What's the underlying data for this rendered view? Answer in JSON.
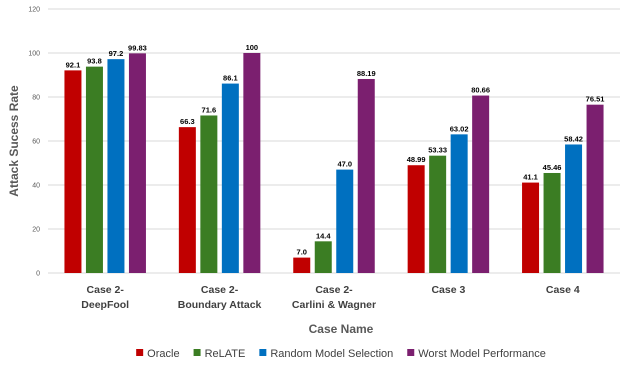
{
  "chart_data": {
    "type": "bar",
    "categories": [
      [
        "Case 2-",
        "DeepFool"
      ],
      [
        "Case 2-",
        "Boundary Attack"
      ],
      [
        "Case 2-",
        "Carlini & Wagner"
      ],
      [
        "Case 3"
      ],
      [
        "Case 4"
      ]
    ],
    "series": [
      {
        "name": "Oracle",
        "color": "#c00000",
        "values": [
          92.1,
          66.3,
          7.0,
          48.99,
          41.1
        ],
        "labels": [
          "92.1",
          "66.3",
          "7.0",
          "48.99",
          "41.1"
        ]
      },
      {
        "name": "ReLATE",
        "color": "#3b7d23",
        "values": [
          93.8,
          71.6,
          14.4,
          53.33,
          45.46
        ],
        "labels": [
          "93.8",
          "71.6",
          "14.4",
          "53.33",
          "45.46"
        ]
      },
      {
        "name": "Random Model Selection",
        "color": "#0070c0",
        "values": [
          97.2,
          86.1,
          47.0,
          63.02,
          58.42
        ],
        "labels": [
          "97.2",
          "86.1",
          "47.0",
          "63.02",
          "58.42"
        ]
      },
      {
        "name": "Worst Model Performance",
        "color": "#7b1f6f",
        "values": [
          99.83,
          100,
          88.19,
          80.66,
          76.51
        ],
        "labels": [
          "99.83",
          "100",
          "88.19",
          "80.66",
          "76.51"
        ]
      }
    ],
    "xlabel": "Case Name",
    "ylabel": "Attack Sucess Rate",
    "ylim": [
      0,
      120
    ],
    "yticks": [
      0,
      20,
      40,
      60,
      80,
      100,
      120
    ],
    "grid": true,
    "legend": "bottom"
  }
}
